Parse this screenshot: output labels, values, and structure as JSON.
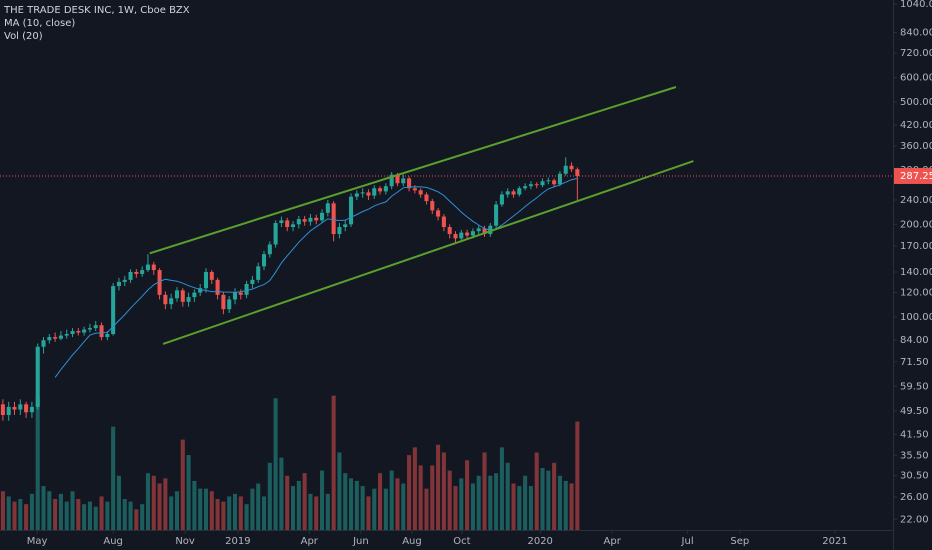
{
  "chart_data": {
    "type": "candlestick",
    "title": "THE TRADE DESK INC, 1W, Cboe BZX",
    "indicators": [
      "MA (10, close)",
      "Vol (20)"
    ],
    "log_scale": true,
    "grid": false,
    "up_color": "#26a69a",
    "down_color": "#ef5350",
    "ma_color": "#2f8fd6",
    "background": "#131722",
    "ylim": [
      20.3,
      1072
    ],
    "yticks": [
      {
        "value": 1040,
        "label": "1040.00"
      },
      {
        "value": 840,
        "label": "840.00"
      },
      {
        "value": 720,
        "label": "720.00"
      },
      {
        "value": 600,
        "label": "600.00"
      },
      {
        "value": 500,
        "label": "500.00"
      },
      {
        "value": 420,
        "label": "420.00"
      },
      {
        "value": 360,
        "label": "360.00"
      },
      {
        "value": 300,
        "label": "300.00"
      },
      {
        "value": 240,
        "label": "240.00"
      },
      {
        "value": 200,
        "label": "200.00"
      },
      {
        "value": 170,
        "label": "170.00"
      },
      {
        "value": 140,
        "label": "140.00"
      },
      {
        "value": 120,
        "label": "120.00"
      },
      {
        "value": 100,
        "label": "100.00"
      },
      {
        "value": 84,
        "label": "84.00"
      },
      {
        "value": 71.5,
        "label": "71.50"
      },
      {
        "value": 59.5,
        "label": "59.50"
      },
      {
        "value": 49.5,
        "label": "49.50"
      },
      {
        "value": 41.5,
        "label": "41.50"
      },
      {
        "value": 35.5,
        "label": "35.50"
      },
      {
        "value": 30.5,
        "label": "30.50"
      },
      {
        "value": 26,
        "label": "26.00"
      },
      {
        "value": 22,
        "label": "22.00"
      }
    ],
    "xlim": [
      -0.5,
      153.4
    ],
    "xticks": [
      {
        "value": 5.9,
        "label": "May"
      },
      {
        "value": 19,
        "label": "Aug"
      },
      {
        "value": 31.4,
        "label": "Nov"
      },
      {
        "value": 40.5,
        "label": "2019"
      },
      {
        "value": 52.8,
        "label": "Apr"
      },
      {
        "value": 61.7,
        "label": "Jun"
      },
      {
        "value": 70.5,
        "label": "Aug"
      },
      {
        "value": 79.1,
        "label": "Oct"
      },
      {
        "value": 92.6,
        "label": "2020"
      },
      {
        "value": 105,
        "label": "Apr"
      },
      {
        "value": 118,
        "label": "Jul"
      },
      {
        "value": 127,
        "label": "Sep"
      },
      {
        "value": 143.4,
        "label": "2021"
      }
    ],
    "open": [
      52,
      48,
      51,
      50,
      52,
      49,
      51,
      80,
      84,
      86,
      85,
      87,
      88,
      90,
      89,
      91,
      92,
      94,
      86,
      88,
      126,
      130,
      132,
      140,
      138,
      142,
      148,
      142,
      118,
      110,
      115,
      122,
      112,
      116,
      120,
      124,
      140,
      132,
      118,
      106,
      114,
      120,
      118,
      128,
      132,
      146,
      160,
      172,
      202,
      206,
      196,
      200,
      208,
      204,
      210,
      206,
      218,
      234,
      186,
      196,
      200,
      246,
      252,
      254,
      248,
      262,
      256,
      266,
      290,
      272,
      282,
      262,
      258,
      250,
      238,
      222,
      212,
      196,
      186,
      180,
      188,
      184,
      190,
      194,
      186,
      198,
      232,
      250,
      256,
      250,
      262,
      266,
      270,
      268,
      276,
      278,
      270,
      292,
      310,
      302
    ],
    "high": [
      54,
      53,
      53,
      54,
      53,
      53,
      82,
      86,
      88,
      89,
      90,
      91,
      92,
      92,
      93,
      95,
      97,
      96,
      90,
      129,
      134,
      136,
      143,
      143,
      146,
      160,
      151,
      144,
      121,
      119,
      125,
      124,
      120,
      123,
      128,
      144,
      142,
      134,
      120,
      117,
      124,
      123,
      131,
      136,
      150,
      164,
      176,
      206,
      212,
      210,
      205,
      213,
      213,
      216,
      215,
      224,
      240,
      238,
      202,
      206,
      252,
      258,
      262,
      260,
      268,
      266,
      272,
      296,
      294,
      290,
      286,
      268,
      262,
      254,
      242,
      226,
      216,
      200,
      190,
      192,
      192,
      194,
      198,
      198,
      202,
      238,
      256,
      262,
      260,
      266,
      272,
      276,
      274,
      282,
      284,
      282,
      298,
      330,
      318,
      306
    ],
    "low": [
      46,
      46,
      48,
      48,
      47,
      47,
      50,
      76,
      82,
      83,
      84,
      85,
      86,
      87,
      87,
      89,
      90,
      84,
      84,
      87,
      122,
      126,
      129,
      134,
      135,
      140,
      137,
      114,
      106,
      106,
      112,
      108,
      108,
      112,
      117,
      120,
      128,
      114,
      102,
      103,
      110,
      114,
      115,
      124,
      129,
      142,
      156,
      168,
      196,
      190,
      190,
      194,
      198,
      198,
      200,
      202,
      212,
      176,
      180,
      190,
      196,
      240,
      244,
      240,
      242,
      250,
      250,
      260,
      266,
      266,
      256,
      252,
      244,
      232,
      216,
      206,
      190,
      180,
      174,
      176,
      178,
      180,
      186,
      182,
      182,
      194,
      228,
      244,
      244,
      246,
      258,
      260,
      262,
      264,
      270,
      264,
      266,
      288,
      296,
      240
    ],
    "close": [
      48,
      51,
      50,
      52,
      49,
      51,
      80,
      84,
      86,
      85,
      87,
      88,
      90,
      89,
      91,
      92,
      94,
      86,
      88,
      126,
      130,
      132,
      140,
      138,
      142,
      148,
      142,
      118,
      110,
      115,
      122,
      112,
      116,
      120,
      124,
      140,
      132,
      118,
      106,
      114,
      120,
      118,
      128,
      132,
      146,
      160,
      172,
      202,
      206,
      196,
      200,
      208,
      204,
      210,
      206,
      218,
      234,
      186,
      196,
      200,
      246,
      252,
      254,
      248,
      262,
      256,
      266,
      290,
      272,
      282,
      262,
      258,
      250,
      238,
      222,
      212,
      196,
      186,
      180,
      188,
      184,
      190,
      194,
      186,
      198,
      232,
      250,
      256,
      250,
      262,
      266,
      270,
      268,
      276,
      278,
      270,
      292,
      310,
      302,
      287.25
    ],
    "volume": [
      3.0,
      2.6,
      2.2,
      2.4,
      2.0,
      2.8,
      10.4,
      3.4,
      3.0,
      2.4,
      2.8,
      2.2,
      3.0,
      2.4,
      2.0,
      2.2,
      1.8,
      2.6,
      2.2,
      8.0,
      4.2,
      2.4,
      2.2,
      1.6,
      2.0,
      4.4,
      4.2,
      3.6,
      4.0,
      2.6,
      3.0,
      7.0,
      5.8,
      3.8,
      3.2,
      3.2,
      3.0,
      2.4,
      2.2,
      2.6,
      2.8,
      2.6,
      2.0,
      3.2,
      3.6,
      2.6,
      5.2,
      10.2,
      5.6,
      4.2,
      3.4,
      3.8,
      4.4,
      2.8,
      2.6,
      4.6,
      2.8,
      10.4,
      6.0,
      4.4,
      4.0,
      3.8,
      3.4,
      2.6,
      3.2,
      4.4,
      3.2,
      4.6,
      4.0,
      3.6,
      5.8,
      6.4,
      5.0,
      3.2,
      5.0,
      6.6,
      6.0,
      4.6,
      3.4,
      4.0,
      5.4,
      3.6,
      4.2,
      6.0,
      4.2,
      4.4,
      6.4,
      5.2,
      3.6,
      3.4,
      4.2,
      3.4,
      6.0,
      4.8,
      4.6,
      5.2,
      4.2,
      3.8,
      3.6,
      8.4
    ],
    "vlim": [
      0,
      12
    ],
    "trendlines": [
      {
        "color": "#5aa02c",
        "x": [
          25.3,
          116
        ],
        "y": [
          161,
          559
        ]
      },
      {
        "color": "#5aa02c",
        "x": [
          27.6,
          119
        ],
        "y": [
          81.7,
          321
        ]
      }
    ]
  }
}
